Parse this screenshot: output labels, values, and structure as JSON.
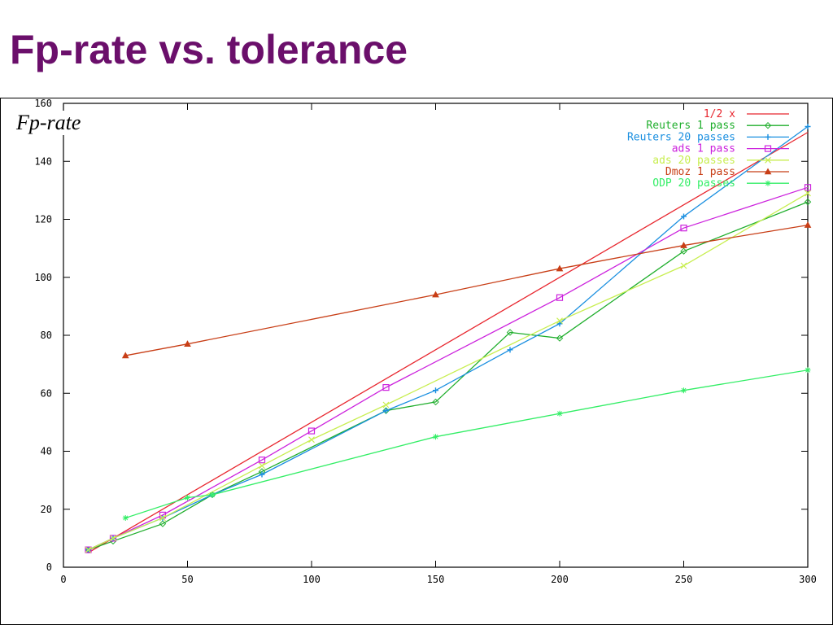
{
  "slide": {
    "title": "Fp-rate vs. tolerance"
  },
  "chart_data": {
    "type": "line",
    "title": "",
    "xlabel": "",
    "ylabel": "Fp-rate",
    "xlim": [
      0,
      300
    ],
    "ylim": [
      0,
      160
    ],
    "xticks": [
      0,
      50,
      100,
      150,
      200,
      250,
      300
    ],
    "yticks": [
      0,
      20,
      40,
      60,
      80,
      100,
      120,
      140,
      160
    ],
    "grid": false,
    "legend_position": "top-right",
    "series": [
      {
        "name": "1/2 x",
        "color": "#e8262e",
        "marker": "none",
        "x": [
          10,
          300
        ],
        "y": [
          5,
          150
        ]
      },
      {
        "name": "Reuters 1 pass",
        "color": "#1fae2c",
        "marker": "diamond",
        "x": [
          10,
          20,
          40,
          60,
          80,
          130,
          150,
          180,
          200,
          250,
          300
        ],
        "y": [
          6,
          9,
          15,
          25,
          33,
          54,
          57,
          81,
          79,
          109,
          126
        ]
      },
      {
        "name": "Reuters 20 passes",
        "color": "#1a8fe0",
        "marker": "plus",
        "x": [
          10,
          20,
          40,
          60,
          80,
          130,
          150,
          180,
          200,
          250,
          300
        ],
        "y": [
          6,
          10,
          17,
          25,
          32,
          54,
          61,
          75,
          84,
          121,
          152
        ]
      },
      {
        "name": "ads 1 pass",
        "color": "#cc22dd",
        "marker": "square",
        "x": [
          10,
          20,
          40,
          80,
          100,
          130,
          200,
          250,
          300
        ],
        "y": [
          6,
          10,
          18,
          37,
          47,
          62,
          93,
          117,
          131
        ]
      },
      {
        "name": "ads 20 passes",
        "color": "#c8ee50",
        "marker": "cross",
        "x": [
          10,
          20,
          40,
          80,
          100,
          130,
          200,
          250,
          300
        ],
        "y": [
          6,
          10,
          17,
          35,
          44,
          56,
          85,
          104,
          129
        ]
      },
      {
        "name": "Dmoz 1 pass",
        "color": "#c83e16",
        "marker": "triangle",
        "x": [
          25,
          50,
          150,
          200,
          250,
          300
        ],
        "y": [
          73,
          77,
          94,
          103,
          111,
          118
        ]
      },
      {
        "name": "ODP 20 passes",
        "color": "#33ee66",
        "marker": "star",
        "x": [
          25,
          50,
          60,
          150,
          200,
          250,
          300
        ],
        "y": [
          17,
          24,
          25,
          45,
          53,
          61,
          68
        ]
      }
    ]
  }
}
